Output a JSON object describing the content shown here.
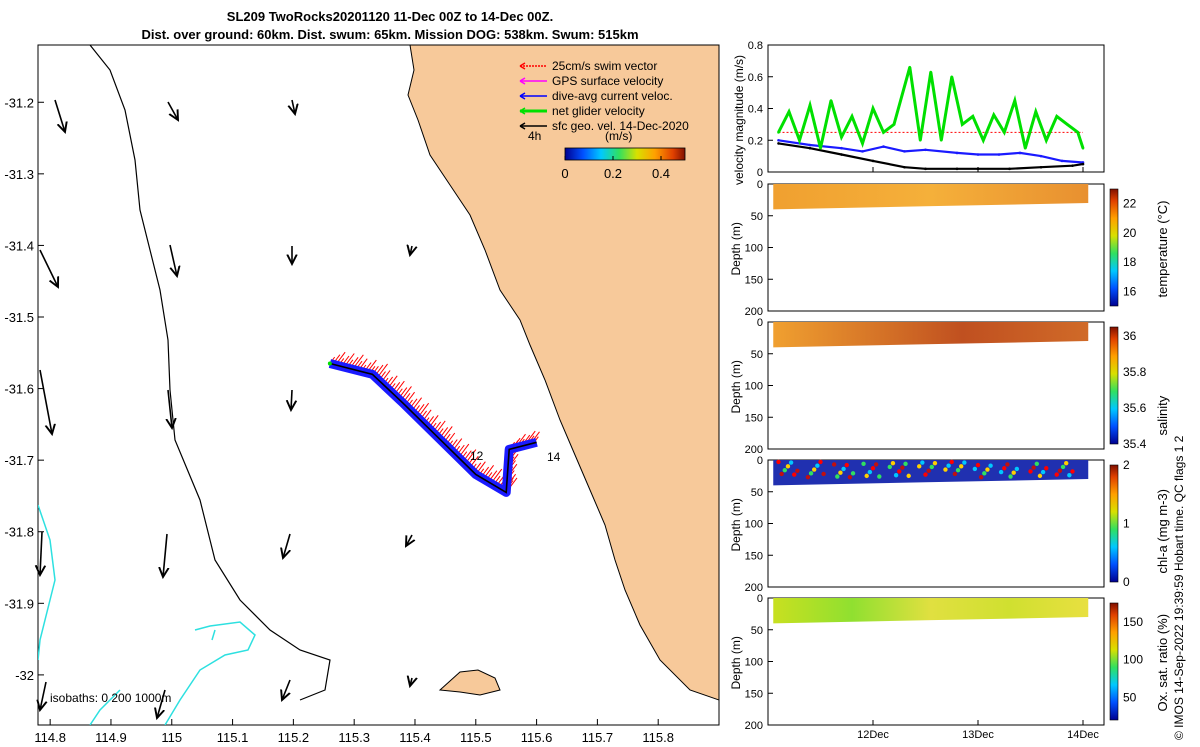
{
  "header": {
    "title_line1": "SL209 TwoRocks20201120 11-Dec 00Z to 14-Dec 00Z.",
    "title_line2": "Dist. over ground: 60km. Dist. swum: 65km. Mission DOG: 538km. Swum: 515km"
  },
  "credit": "© IMOS 14-Sep-2022 19:39:59 Hobart time. QC flags 1  2",
  "colors": {
    "land": "#f7c99a",
    "glider_track": "#1a1aff",
    "swim_vector": "#ff0000",
    "isobath": "#2de0e0",
    "net_velocity": "#00e000"
  },
  "chart_data": [
    {
      "type": "scatter",
      "name": "track-map",
      "xlim": [
        114.78,
        115.9
      ],
      "ylim": [
        -32.07,
        -31.12
      ],
      "x_ticks": [
        "114.8",
        "114.9",
        "115",
        "115.1",
        "115.2",
        "115.3",
        "115.4",
        "115.5",
        "115.6",
        "115.7",
        "115.8"
      ],
      "y_ticks": [
        "-31.2",
        "-31.3",
        "-31.4",
        "-31.5",
        "-31.6",
        "-31.7",
        "-31.8",
        "-31.9",
        "-32"
      ],
      "legend": [
        {
          "label": "25cm/s swim vector",
          "color": "#ff0000"
        },
        {
          "label": "GPS surface velocity",
          "color": "#ff00ff"
        },
        {
          "label": "dive-avg current veloc.",
          "color": "#0000ff"
        },
        {
          "label": "net glider velocity",
          "color": "#00e000"
        },
        {
          "label": "sfc geo. vel. 14-Dec-2020",
          "color": "#000000"
        }
      ],
      "vector_scale_label": "4h",
      "colorbar": {
        "label": "(m/s)",
        "ticks": [
          "0",
          "0.2",
          "0.4"
        ],
        "range": [
          0,
          0.5
        ]
      },
      "track_labels": [
        "12",
        "14"
      ],
      "isobath_label": "isobaths: 0   200  1000m",
      "track": {
        "lon": [
          115.26,
          115.33,
          115.38,
          115.44,
          115.5,
          115.55,
          115.555,
          115.6
        ],
        "lat": [
          -31.565,
          -31.58,
          -31.62,
          -31.67,
          -31.72,
          -31.745,
          -31.685,
          -31.675
        ]
      }
    },
    {
      "type": "line",
      "name": "velocity-magnitude",
      "ylabel": "velocity magnitude (m/s)",
      "ylim": [
        0,
        0.8
      ],
      "y_ticks": [
        "0",
        "0.2",
        "0.4",
        "0.6",
        "0.8"
      ],
      "x_ticks": [
        "12Dec",
        "13Dec",
        "14Dec"
      ],
      "xlim": [
        11,
        14.2
      ],
      "series": [
        {
          "name": "dive-avg current",
          "color": "#1a1aff",
          "x": [
            11.1,
            11.4,
            11.7,
            11.9,
            12.1,
            12.3,
            12.5,
            12.8,
            13.0,
            13.2,
            13.4,
            13.6,
            13.8,
            14.0
          ],
          "y": [
            0.2,
            0.17,
            0.15,
            0.13,
            0.16,
            0.13,
            0.14,
            0.12,
            0.11,
            0.11,
            0.12,
            0.1,
            0.07,
            0.06
          ]
        },
        {
          "name": "surface velocity",
          "color": "#000000",
          "x": [
            11.1,
            11.4,
            11.7,
            12.0,
            12.3,
            12.5,
            12.8,
            13.0,
            13.3,
            13.6,
            13.9,
            14.0
          ],
          "y": [
            0.18,
            0.15,
            0.11,
            0.07,
            0.03,
            0.02,
            0.02,
            0.02,
            0.02,
            0.03,
            0.04,
            0.05
          ]
        },
        {
          "name": "net glider",
          "color": "#00e000",
          "x": [
            11.1,
            11.2,
            11.3,
            11.4,
            11.5,
            11.6,
            11.7,
            11.8,
            11.9,
            12.0,
            12.1,
            12.2,
            12.35,
            12.45,
            12.55,
            12.65,
            12.75,
            12.85,
            12.95,
            13.05,
            13.15,
            13.25,
            13.35,
            13.45,
            13.55,
            13.65,
            13.75,
            13.85,
            13.95,
            14.0
          ],
          "y": [
            0.25,
            0.38,
            0.2,
            0.42,
            0.15,
            0.45,
            0.22,
            0.35,
            0.18,
            0.4,
            0.25,
            0.3,
            0.66,
            0.2,
            0.63,
            0.2,
            0.6,
            0.3,
            0.35,
            0.2,
            0.36,
            0.25,
            0.45,
            0.15,
            0.38,
            0.2,
            0.35,
            0.3,
            0.25,
            0.15
          ]
        }
      ]
    },
    {
      "type": "heatmap",
      "name": "temperature-section",
      "ylabel": "Depth (m)",
      "ylim": [
        200,
        0
      ],
      "y_ticks": [
        "0",
        "50",
        "100",
        "150",
        "200"
      ],
      "colorbar": {
        "label": "temperature (°C)",
        "ticks": [
          "16",
          "18",
          "20",
          "22"
        ],
        "range": [
          15,
          23
        ]
      }
    },
    {
      "type": "heatmap",
      "name": "salinity-section",
      "ylabel": "Depth (m)",
      "ylim": [
        200,
        0
      ],
      "y_ticks": [
        "0",
        "50",
        "100",
        "150",
        "200"
      ],
      "colorbar": {
        "label": "salinity",
        "ticks": [
          "35.4",
          "35.6",
          "35.8",
          "36"
        ],
        "range": [
          35.4,
          36.05
        ]
      }
    },
    {
      "type": "heatmap",
      "name": "chla-section",
      "ylabel": "Depth (m)",
      "ylim": [
        200,
        0
      ],
      "y_ticks": [
        "0",
        "50",
        "100",
        "150",
        "200"
      ],
      "colorbar": {
        "label": "chl-a (mg m-3)",
        "ticks": [
          "0",
          "1",
          "2"
        ],
        "range": [
          0,
          2
        ]
      }
    },
    {
      "type": "heatmap",
      "name": "oxygen-section",
      "ylabel": "Depth (m)",
      "ylim": [
        200,
        0
      ],
      "y_ticks": [
        "0",
        "50",
        "100",
        "150",
        "200"
      ],
      "x_ticks": [
        "12Dec",
        "13Dec",
        "14Dec"
      ],
      "colorbar": {
        "label": "Ox. sat. ratio (%)",
        "ticks": [
          "50",
          "100",
          "150"
        ],
        "range": [
          20,
          175
        ]
      }
    }
  ]
}
